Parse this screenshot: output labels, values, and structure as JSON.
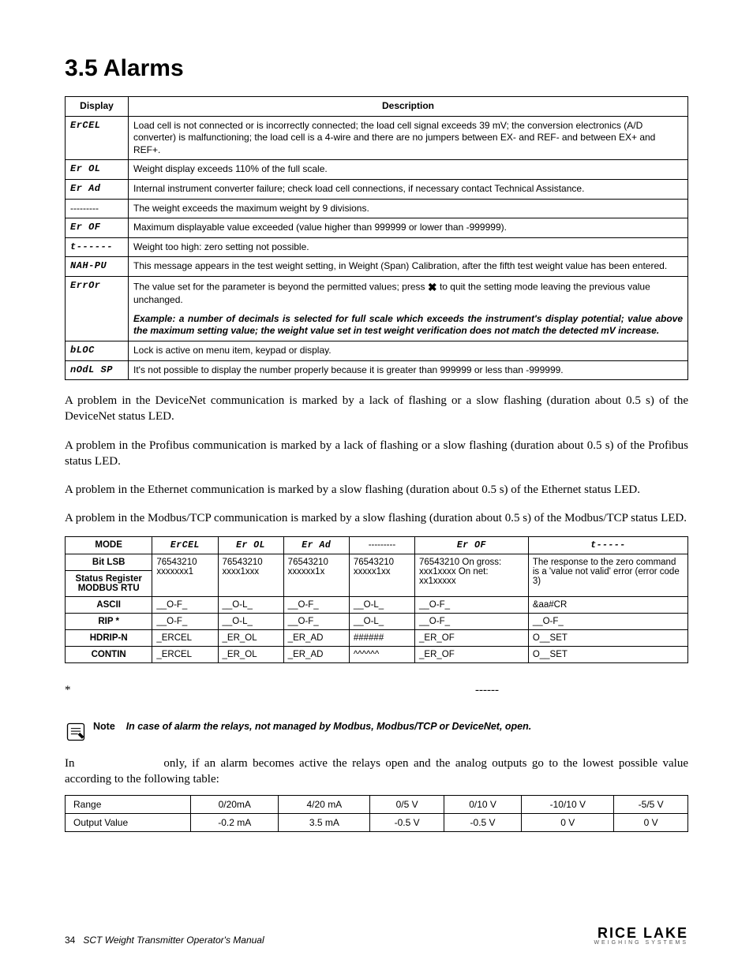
{
  "heading": "3.5   Alarms",
  "alarm_table": {
    "headers": [
      "Display",
      "Description"
    ],
    "rows": [
      {
        "display": "ErCEL",
        "seg": true,
        "desc": "Load cell is not connected or is incorrectly connected; the load cell signal exceeds 39 mV; the conversion electronics (A/D converter) is malfunctioning; the load cell is a 4-wire and there are no jumpers between EX- and REF- and between EX+ and REF+."
      },
      {
        "display": "Er OL",
        "seg": true,
        "desc": "Weight display exceeds 110% of the full scale."
      },
      {
        "display": "Er Ad",
        "seg": true,
        "desc": "Internal instrument converter failure; check load cell connections, if necessary contact Technical Assistance."
      },
      {
        "display": "---------",
        "seg": false,
        "desc": "The weight exceeds the maximum weight by 9 divisions."
      },
      {
        "display": "Er OF",
        "seg": true,
        "desc": "Maximum displayable value exceeded (value higher than 999999 or lower than -999999)."
      },
      {
        "display": "t------",
        "seg": true,
        "desc": "Weight too high: zero setting not possible."
      },
      {
        "display": "NAH-PU",
        "seg": true,
        "desc": "This message appears in the test weight setting, in Weight (Span) Calibration, after the fifth test weight value has been entered."
      },
      {
        "display": "ErrOr",
        "seg": true,
        "desc_html": true
      },
      {
        "display": "bLOC",
        "seg": true,
        "desc": "Lock is active on menu item, keypad or display."
      },
      {
        "display": "nOdL SP",
        "seg": true,
        "desc": "It's not possible to display the number properly because it is greater than 999999 or less than -999999."
      }
    ],
    "error_row": {
      "p1_pre": "The value set for the parameter is beyond the permitted values; press ",
      "p1_post": " to quit the setting mode leaving the previous value unchanged.",
      "p2": "Example: a number of decimals is selected for full scale which exceeds the instrument's display potential; value above the maximum setting value; the weight value set in test weight verification does not match the detected mV increase."
    }
  },
  "paragraphs": [
    "A problem in the DeviceNet communication is marked by a lack of flashing or a slow flashing (duration about 0.5 s) of the DeviceNet status LED.",
    "A problem in the Profibus communication is marked by a lack of flashing or a slow flashing (duration about 0.5 s) of the Profibus status LED.",
    "A problem in the Ethernet communication is marked by a slow flashing (duration about 0.5 s) of the Ethernet status LED.",
    "A problem in the Modbus/TCP communication is marked by a slow flashing (duration about 0.5 s) of the Modbus/TCP status LED."
  ],
  "mode_table": {
    "header_row": [
      "MODE",
      "ErCEL",
      "Er OL",
      "Er Ad",
      "---------",
      "Er OF",
      "t-----"
    ],
    "rows": [
      {
        "labels": [
          "Bit LSB",
          "Status Register MODBUS RTU"
        ],
        "cells": [
          "76543210 xxxxxxx1",
          "76543210 xxxx1xxx",
          "76543210 xxxxxx1x",
          "76543210 xxxxx1xx",
          "76543210 On gross: xxx1xxxx On net: xx1xxxxx",
          "The response to the zero command is a 'value not valid' error (error code 3)"
        ]
      },
      {
        "labels": [
          "ASCII"
        ],
        "cells": [
          "__O-F_",
          "__O-L_",
          "__O-F_",
          "__O-L_",
          "__O-F_",
          "&aa#CR"
        ]
      },
      {
        "labels": [
          "RIP *"
        ],
        "cells": [
          "__O-F_",
          "__O-L_",
          "__O-F_",
          "__O-L_",
          "__O-F_",
          "__O-F_"
        ]
      },
      {
        "labels": [
          "HDRIP-N"
        ],
        "cells": [
          "_ERCEL",
          "_ER_OL",
          "_ER_AD",
          "######",
          "_ER_OF",
          "O__SET"
        ]
      },
      {
        "labels": [
          "CONTIN"
        ],
        "cells": [
          "_ERCEL",
          "_ER_OL",
          "_ER_AD",
          "^^^^^^",
          "_ER_OF",
          "O__SET"
        ]
      }
    ]
  },
  "asterisk_note": {
    "star": "*",
    "dashes": "------"
  },
  "note": {
    "label": "Note",
    "text": "In case of alarm the relays, not managed by Modbus, Modbus/TCP or DeviceNet, open."
  },
  "final_para_pre": "In ",
  "final_para_post": " only, if an alarm becomes active the relays open and the analog outputs go to the lowest possible value according to the following table:",
  "range_table": {
    "headers": [
      "Range",
      "0/20mA",
      "4/20 mA",
      "0/5 V",
      "0/10 V",
      "-10/10 V",
      "-5/5 V"
    ],
    "row_label": "Output Value",
    "values": [
      "-0.2 mA",
      "3.5 mA",
      "-0.5 V",
      "-0.5 V",
      "0 V",
      "0 V"
    ]
  },
  "footer": {
    "page": "34",
    "title": "SCT Weight Transmitter  Operator's Manual",
    "logo_main": "RICE LAKE",
    "logo_sub": "WEIGHING SYSTEMS"
  }
}
